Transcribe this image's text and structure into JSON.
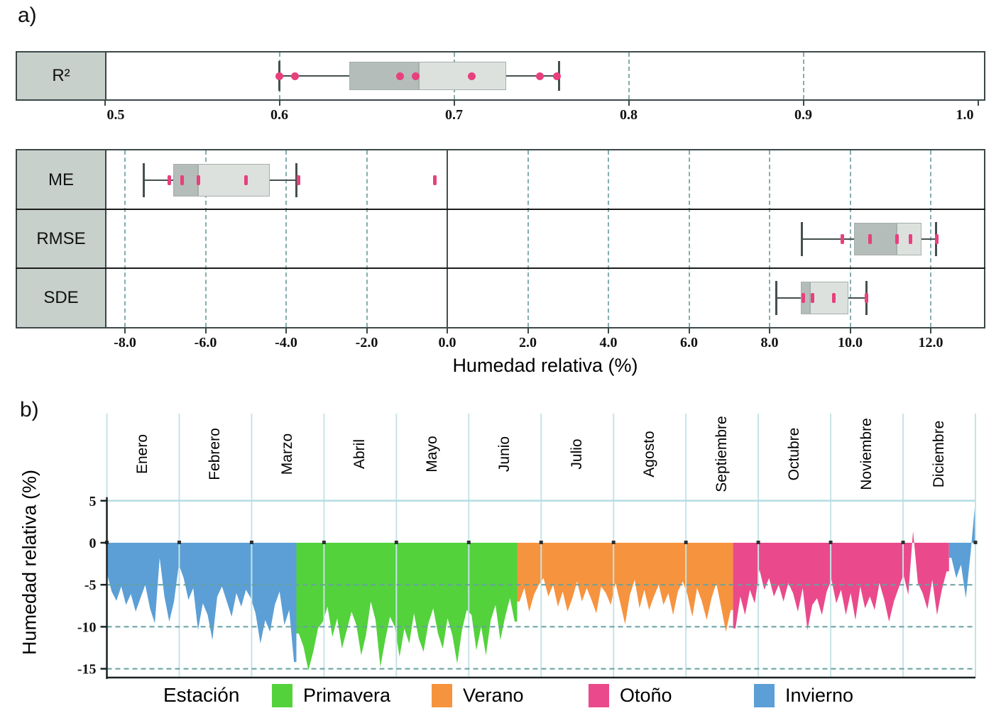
{
  "panels": {
    "a": {
      "label": "a)",
      "xlabel": "Humedad relativa (%)"
    },
    "b": {
      "label": "b)",
      "ylabel": "Humedad relativa (%)"
    }
  },
  "legend": {
    "title": "Estación",
    "items": [
      {
        "label": "Primavera",
        "color": "#53d23c"
      },
      {
        "label": "Verano",
        "color": "#f6933f"
      },
      {
        "label": "Otoño",
        "color": "#ea4a8b"
      },
      {
        "label": "Invierno",
        "color": "#5b9fd6"
      }
    ]
  },
  "colors": {
    "frame": "#3c4848",
    "row_separator": "#1c1c1c",
    "label_cell": "#c8d0cc",
    "box_dark": "#b5bdba",
    "box_light": "#dce1de",
    "box_edge": "#a6afab",
    "whisker": "#44504f",
    "point": "#e8407c",
    "grid_teal_dashed": "#85adad",
    "zero_line": "#44504f",
    "b_month_line": "#c6e3e6",
    "b_top_line": "#b5dde2",
    "b_dashed_grid": "#66a1a1",
    "b_axis_black": "#1a2222",
    "b_notch": "#2b3030"
  },
  "chart_data": [
    {
      "type": "boxplot",
      "panel": "a",
      "orientation": "horizontal",
      "xlabel": "Humedad relativa (%)",
      "groups": [
        {
          "name": "r2",
          "axis": {
            "range": [
              0.5,
              1.0
            ],
            "ticks": [
              0.5,
              0.6,
              0.7,
              0.8,
              0.9,
              1.0
            ],
            "tick_labels": [
              "0.5",
              "0.6",
              "0.7",
              "0.8",
              "0.9",
              "1.0"
            ],
            "gridlines": [
              0.6,
              0.7,
              0.8,
              0.9
            ]
          },
          "rows": [
            {
              "label": "R²",
              "min": 0.6,
              "q1": 0.64,
              "median": 0.68,
              "q3": 0.73,
              "max": 0.76,
              "points": [
                0.6,
                0.609,
                0.669,
                0.678,
                0.71,
                0.749,
                0.759
              ]
            }
          ]
        },
        {
          "name": "metrics",
          "axis": {
            "range": [
              -8.5,
              13.4
            ],
            "ticks": [
              -8,
              -6,
              -4,
              -2,
              0,
              2,
              4,
              6,
              8,
              10,
              12
            ],
            "tick_labels": [
              "-8.0",
              "-6.0",
              "-4.0",
              "-2.0",
              "0.0",
              "2.0",
              "4.0",
              "6.0",
              "8.0",
              "10.0",
              "12.0"
            ],
            "gridlines": [
              -8,
              -6,
              -4,
              -2,
              2,
              4,
              6,
              8,
              10,
              12
            ],
            "zero_line": 0
          },
          "rows": [
            {
              "label": "ME",
              "min": -7.54,
              "q1": -6.8,
              "median": -6.18,
              "q3": -4.4,
              "max": -3.74,
              "points": [
                -6.89,
                -6.59,
                -6.17,
                -4.99,
                -3.7,
                -0.31
              ]
            },
            {
              "label": "RMSE",
              "min": 8.81,
              "q1": 10.1,
              "median": 11.16,
              "q3": 11.77,
              "max": 12.13,
              "points": [
                9.8,
                10.5,
                11.17,
                11.49,
                12.15
              ]
            },
            {
              "label": "SDE",
              "min": 8.16,
              "q1": 8.78,
              "median": 9.01,
              "q3": 9.96,
              "max": 10.4,
              "points": [
                8.84,
                9.06,
                9.59,
                10.41
              ]
            }
          ]
        }
      ]
    },
    {
      "type": "area",
      "panel": "b",
      "ylabel": "Humedad relativa (%)",
      "months": [
        "Enero",
        "Febrero",
        "Marzo",
        "Abril",
        "Mayo",
        "Junio",
        "Julio",
        "Agosto",
        "Septiembre",
        "Octubre",
        "Noviembre",
        "Diciembre"
      ],
      "yticks": [
        5,
        0,
        -5,
        -10,
        -15
      ],
      "ytick_labels": [
        "5",
        "0",
        "-5",
        "-10",
        "-15"
      ],
      "ylim": [
        -16.2,
        5.2
      ],
      "grid_dashed": [
        -5,
        -10,
        -15
      ],
      "seasons": [
        {
          "name": "Invierno",
          "from": 0,
          "to": 39
        },
        {
          "name": "Primavera",
          "from": 40,
          "to": 85
        },
        {
          "name": "Verano",
          "from": 86,
          "to": 130
        },
        {
          "name": "Otoño",
          "from": 131,
          "to": 175
        },
        {
          "name": "Invierno",
          "from": 176,
          "to": 181
        }
      ],
      "values": [
        -3.6,
        -5.8,
        -6.9,
        -5.2,
        -7.4,
        -6.1,
        -8.2,
        -6.6,
        -5.0,
        -7.8,
        -9.6,
        -1.8,
        -6.4,
        -9.4,
        -7.0,
        -2.6,
        -4.2,
        -6.8,
        -5.4,
        -10.4,
        -7.2,
        -8.6,
        -11.6,
        -6.4,
        -5.2,
        -7.0,
        -8.8,
        -6.0,
        -7.6,
        -5.6,
        -6.6,
        -8.4,
        -12.0,
        -9.2,
        -10.6,
        -7.4,
        -5.8,
        -9.8,
        -8.0,
        -14.2,
        -10.8,
        -12.4,
        -15.2,
        -13.0,
        -10.2,
        -9.4,
        -7.6,
        -11.2,
        -9.0,
        -12.6,
        -10.4,
        -8.2,
        -9.8,
        -13.4,
        -11.0,
        -7.0,
        -9.2,
        -14.8,
        -11.6,
        -8.8,
        -10.0,
        -13.6,
        -10.2,
        -12.0,
        -8.4,
        -11.4,
        -13.0,
        -9.6,
        -7.8,
        -10.8,
        -12.6,
        -9.0,
        -11.0,
        -14.4,
        -10.4,
        -8.0,
        -8.6,
        -12.8,
        -10.0,
        -13.4,
        -9.2,
        -7.4,
        -11.6,
        -8.8,
        -6.6,
        -9.4,
        -7.0,
        -5.4,
        -8.2,
        -6.2,
        -5.0,
        -4.2,
        -6.4,
        -5.0,
        -7.6,
        -5.8,
        -8.2,
        -6.6,
        -4.6,
        -7.0,
        -5.4,
        -6.8,
        -8.4,
        -5.2,
        -6.0,
        -7.4,
        -4.8,
        -7.2,
        -9.7,
        -6.2,
        -4.4,
        -7.8,
        -5.6,
        -8.0,
        -6.4,
        -5.0,
        -7.4,
        -6.0,
        -8.6,
        -5.8,
        -4.6,
        -6.2,
        -8.8,
        -5.4,
        -7.0,
        -9.2,
        -6.6,
        -4.8,
        -7.6,
        -10.6,
        -8.0,
        -10.2,
        -6.4,
        -8.6,
        -5.6,
        -7.2,
        -3.2,
        -5.6,
        -4.2,
        -6.4,
        -5.0,
        -7.0,
        -4.8,
        -6.0,
        -8.2,
        -5.4,
        -10.4,
        -7.4,
        -6.6,
        -8.6,
        -5.8,
        -4.4,
        -7.2,
        -5.6,
        -8.6,
        -6.0,
        -9.2,
        -5.2,
        -7.8,
        -6.4,
        -8.0,
        -4.8,
        -6.8,
        -9.4,
        -7.0,
        -5.4,
        -3.8,
        -6.2,
        1.4,
        -4.8,
        -6.0,
        -7.9,
        -4.4,
        -8.6,
        -5.6,
        -3.4,
        -1.8,
        -4.2,
        -2.6,
        -6.6,
        -1.2,
        5.1
      ]
    }
  ]
}
